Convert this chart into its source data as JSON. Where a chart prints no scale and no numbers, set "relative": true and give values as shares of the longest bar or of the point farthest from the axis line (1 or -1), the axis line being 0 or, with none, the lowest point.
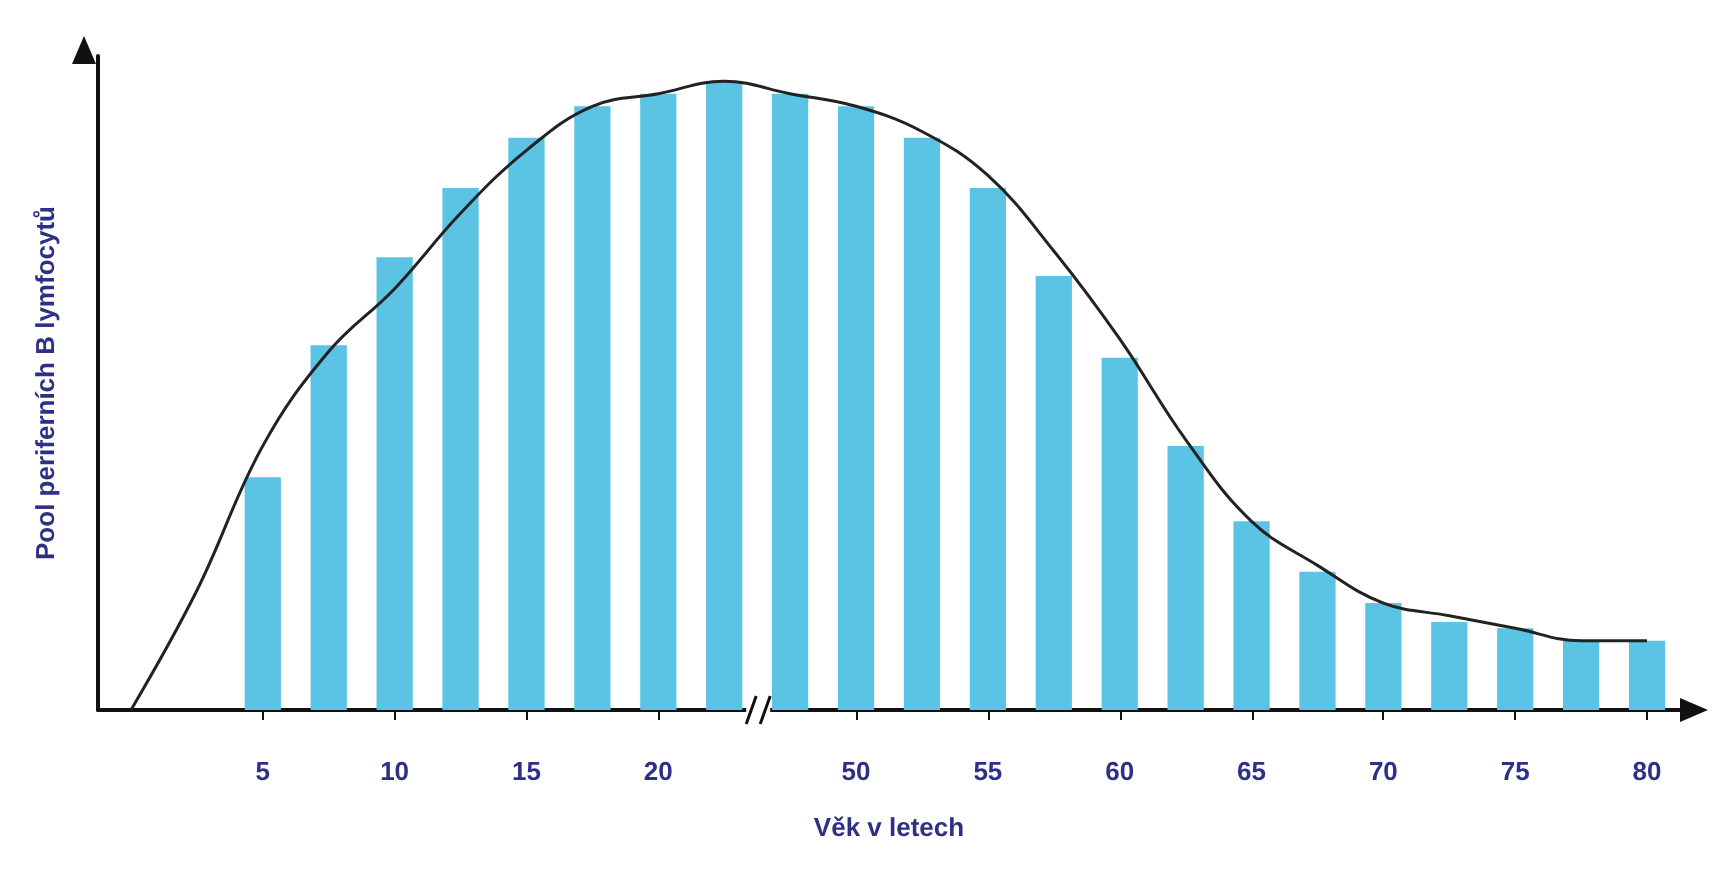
{
  "chart_data": {
    "type": "bar",
    "relative": true,
    "xlabel": "Věk v letech",
    "ylabel": "Pool periferních B lymfocytů",
    "categories": [
      null,
      null,
      "5",
      null,
      "10",
      null,
      "15",
      null,
      "20",
      null,
      null,
      "50",
      null,
      "55",
      null,
      "60",
      null,
      "65",
      null,
      "70",
      null,
      "75",
      null,
      "80"
    ],
    "series": [
      {
        "color": "#5bc3e3",
        "values": [
          null,
          null,
          0.37,
          0.58,
          0.72,
          0.83,
          0.91,
          0.96,
          0.98,
          1.0,
          0.98,
          0.96,
          0.91,
          0.83,
          0.69,
          0.56,
          0.42,
          0.3,
          0.22,
          0.17,
          0.14,
          0.13,
          0.11,
          0.11
        ]
      },
      {
        "type": "line",
        "color": "#222222",
        "values": [
          0,
          0.19,
          0.42,
          0.57,
          0.67,
          0.79,
          0.89,
          0.96,
          0.98,
          1.0,
          0.98,
          0.96,
          0.92,
          0.85,
          0.73,
          0.59,
          0.43,
          0.3,
          0.23,
          0.17,
          0.15,
          0.13,
          0.11,
          0.11
        ]
      }
    ],
    "grid": false,
    "marker": "none"
  }
}
